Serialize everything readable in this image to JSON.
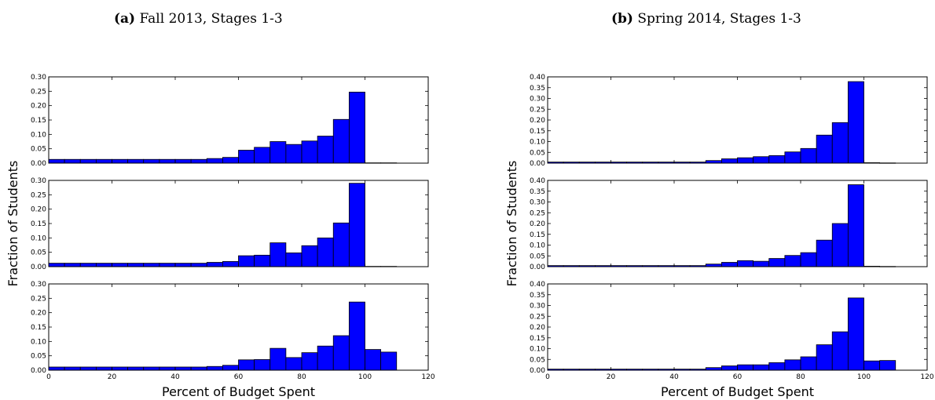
{
  "captions": [
    {
      "letter": "(a)",
      "text": " Fall 2013, Stages 1-3"
    },
    {
      "letter": "(b)",
      "text": " Spring 2014, Stages 1-3"
    }
  ],
  "colors": {
    "bar": "#0000ff",
    "edge": "#000000"
  },
  "chart_data": [
    {
      "type": "bar",
      "title": "(a) Fall 2013, Stages 1-3",
      "xlabel": "Percent of Budget Spent",
      "ylabel": "Fraction of Students",
      "bin_width": 5,
      "xlim": [
        0,
        120
      ],
      "xticks": [
        "0",
        "20",
        "40",
        "60",
        "80",
        "100",
        "120"
      ],
      "subplots": [
        {
          "ylim": [
            0,
            0.3
          ],
          "yticks": [
            "0.00",
            "0.05",
            "0.10",
            "0.15",
            "0.20",
            "0.25",
            "0.30"
          ],
          "bin_starts": [
            0,
            5,
            10,
            15,
            20,
            25,
            30,
            35,
            40,
            45,
            50,
            55,
            60,
            65,
            70,
            75,
            80,
            85,
            90,
            95,
            100,
            105
          ],
          "values": [
            0.013,
            0.013,
            0.013,
            0.013,
            0.013,
            0.013,
            0.013,
            0.013,
            0.013,
            0.013,
            0.016,
            0.02,
            0.045,
            0.055,
            0.075,
            0.065,
            0.077,
            0.094,
            0.152,
            0.247,
            0.001,
            0.001
          ]
        },
        {
          "ylim": [
            0,
            0.3
          ],
          "yticks": [
            "0.00",
            "0.05",
            "0.10",
            "0.15",
            "0.20",
            "0.25",
            "0.30"
          ],
          "bin_starts": [
            0,
            5,
            10,
            15,
            20,
            25,
            30,
            35,
            40,
            45,
            50,
            55,
            60,
            65,
            70,
            75,
            80,
            85,
            90,
            95,
            100,
            105
          ],
          "values": [
            0.012,
            0.012,
            0.012,
            0.012,
            0.012,
            0.012,
            0.012,
            0.012,
            0.012,
            0.012,
            0.015,
            0.018,
            0.038,
            0.04,
            0.083,
            0.048,
            0.073,
            0.1,
            0.152,
            0.29,
            0.001,
            0.001
          ]
        },
        {
          "ylim": [
            0,
            0.3
          ],
          "yticks": [
            "0.00",
            "0.05",
            "0.10",
            "0.15",
            "0.20",
            "0.25",
            "0.30"
          ],
          "bin_starts": [
            0,
            5,
            10,
            15,
            20,
            25,
            30,
            35,
            40,
            45,
            50,
            55,
            60,
            65,
            70,
            75,
            80,
            85,
            90,
            95,
            100,
            105
          ],
          "values": [
            0.011,
            0.011,
            0.011,
            0.011,
            0.011,
            0.011,
            0.011,
            0.011,
            0.011,
            0.011,
            0.013,
            0.017,
            0.036,
            0.037,
            0.076,
            0.044,
            0.061,
            0.084,
            0.12,
            0.237,
            0.072,
            0.063
          ]
        }
      ]
    },
    {
      "type": "bar",
      "title": "(b) Spring 2014, Stages 1-3",
      "xlabel": "Percent of Budget Spent",
      "ylabel": "Fraction of Students",
      "bin_width": 5,
      "xlim": [
        0,
        120
      ],
      "xticks": [
        "0",
        "20",
        "40",
        "60",
        "80",
        "100",
        "120"
      ],
      "subplots": [
        {
          "ylim": [
            0,
            0.4
          ],
          "yticks": [
            "0.00",
            "0.05",
            "0.10",
            "0.15",
            "0.20",
            "0.25",
            "0.30",
            "0.35",
            "0.40"
          ],
          "bin_starts": [
            0,
            5,
            10,
            15,
            20,
            25,
            30,
            35,
            40,
            45,
            50,
            55,
            60,
            65,
            70,
            75,
            80,
            85,
            90,
            95,
            100,
            105
          ],
          "values": [
            0.005,
            0.005,
            0.005,
            0.005,
            0.005,
            0.005,
            0.005,
            0.005,
            0.005,
            0.005,
            0.012,
            0.02,
            0.025,
            0.03,
            0.035,
            0.052,
            0.068,
            0.13,
            0.188,
            0.378,
            0.002,
            0.001
          ]
        },
        {
          "ylim": [
            0,
            0.4
          ],
          "yticks": [
            "0.00",
            "0.05",
            "0.10",
            "0.15",
            "0.20",
            "0.25",
            "0.30",
            "0.35",
            "0.40"
          ],
          "bin_starts": [
            0,
            5,
            10,
            15,
            20,
            25,
            30,
            35,
            40,
            45,
            50,
            55,
            60,
            65,
            70,
            75,
            80,
            85,
            90,
            95,
            100,
            105
          ],
          "values": [
            0.005,
            0.005,
            0.005,
            0.005,
            0.005,
            0.005,
            0.005,
            0.005,
            0.005,
            0.005,
            0.012,
            0.02,
            0.028,
            0.025,
            0.038,
            0.052,
            0.065,
            0.123,
            0.2,
            0.38,
            0.002,
            0.001
          ]
        },
        {
          "ylim": [
            0,
            0.4
          ],
          "yticks": [
            "0.00",
            "0.05",
            "0.10",
            "0.15",
            "0.20",
            "0.25",
            "0.30",
            "0.35",
            "0.40"
          ],
          "bin_starts": [
            0,
            5,
            10,
            15,
            20,
            25,
            30,
            35,
            40,
            45,
            50,
            55,
            60,
            65,
            70,
            75,
            80,
            85,
            90,
            95,
            100,
            105
          ],
          "values": [
            0.005,
            0.005,
            0.005,
            0.005,
            0.005,
            0.005,
            0.005,
            0.005,
            0.005,
            0.005,
            0.012,
            0.02,
            0.025,
            0.025,
            0.035,
            0.048,
            0.062,
            0.118,
            0.178,
            0.335,
            0.043,
            0.045
          ]
        }
      ]
    }
  ]
}
